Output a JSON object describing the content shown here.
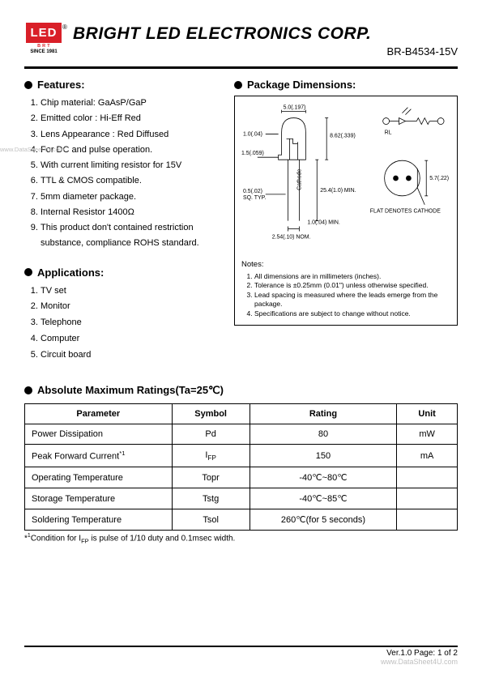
{
  "header": {
    "logo_text": "LED",
    "logo_sub": "B R T",
    "logo_since": "SINCE 1981",
    "registered": "®",
    "company": "BRIGHT LED ELECTRONICS CORP.",
    "part_no": "BR-B4534-15V"
  },
  "features": {
    "title": "Features:",
    "items": [
      "Chip material: GaAsP/GaP",
      "Emitted color : Hi-Eff Red",
      "Lens Appearance : Red Diffused",
      "For DC and pulse operation.",
      "With current limiting resistor for 15V",
      "TTL & CMOS compatible.",
      "5mm diameter package.",
      "Internal Resistor 1400Ω",
      "This product don't contained restriction substance, compliance ROHS standard."
    ]
  },
  "applications": {
    "title": "Applications:",
    "items": [
      "TV set",
      "Monitor",
      "Telephone",
      "Computer",
      "Circuit board"
    ]
  },
  "package": {
    "title": "Package Dimensions:",
    "dims": {
      "d1": "5.0(.197)",
      "d2": "1.0(.04)",
      "d3": "1.5(.059)",
      "d4": "0.5(.02)",
      "d4b": "SQ. TYP.",
      "d5": "2.54(.10) NOM.",
      "d6": "8.62(.339)",
      "d7": "25.4(1.0) MIN.",
      "d8": "1.0(.04) MIN.",
      "d9": "5.7(.22)",
      "rl": "RL",
      "cath": "Cathode",
      "flat": "FLAT DENOTES CATHODE"
    },
    "notes_title": "Notes:",
    "notes": [
      "All dimensions are in millimeters (inches).",
      "Tolerance is ±0.25mm (0.01\") unless otherwise specified.",
      "Lead spacing is measured where the leads emerge from the package.",
      "Specifications are subject to change without notice."
    ]
  },
  "ratings": {
    "title": "Absolute Maximum Ratings(Ta=25℃)",
    "columns": [
      "Parameter",
      "Symbol",
      "Rating",
      "Unit"
    ],
    "rows": [
      {
        "param": "Power Dissipation",
        "symbol": "Pd",
        "rating": "80",
        "unit": "mW"
      },
      {
        "param": "Peak Forward Current",
        "param_sup": "*1",
        "symbol_html": "I<sub>FP</sub>",
        "rating": "150",
        "unit": "mA"
      },
      {
        "param": "Operating Temperature",
        "symbol": "Topr",
        "rating": "-40℃~80℃",
        "unit": ""
      },
      {
        "param": "Storage Temperature",
        "symbol": "Tstg",
        "rating": "-40℃~85℃",
        "unit": ""
      },
      {
        "param": "Soldering Temperature",
        "symbol": "Tsol",
        "rating": "260℃(for 5 seconds)",
        "unit": ""
      }
    ],
    "footnote_html": "*<sup>1</sup>Condition for I<sub>FP</sub> is pulse of 1/10 duty and 0.1msec width."
  },
  "footer": {
    "version": "Ver.1.0  Page:  1  of  2",
    "ds4u": "www.DataSheet4U.com"
  },
  "watermark": "www.DataSheet4U.com",
  "colors": {
    "brand_red": "#d91f28",
    "text": "#000000",
    "bg": "#ffffff",
    "watermark": "#bfbfbf"
  }
}
